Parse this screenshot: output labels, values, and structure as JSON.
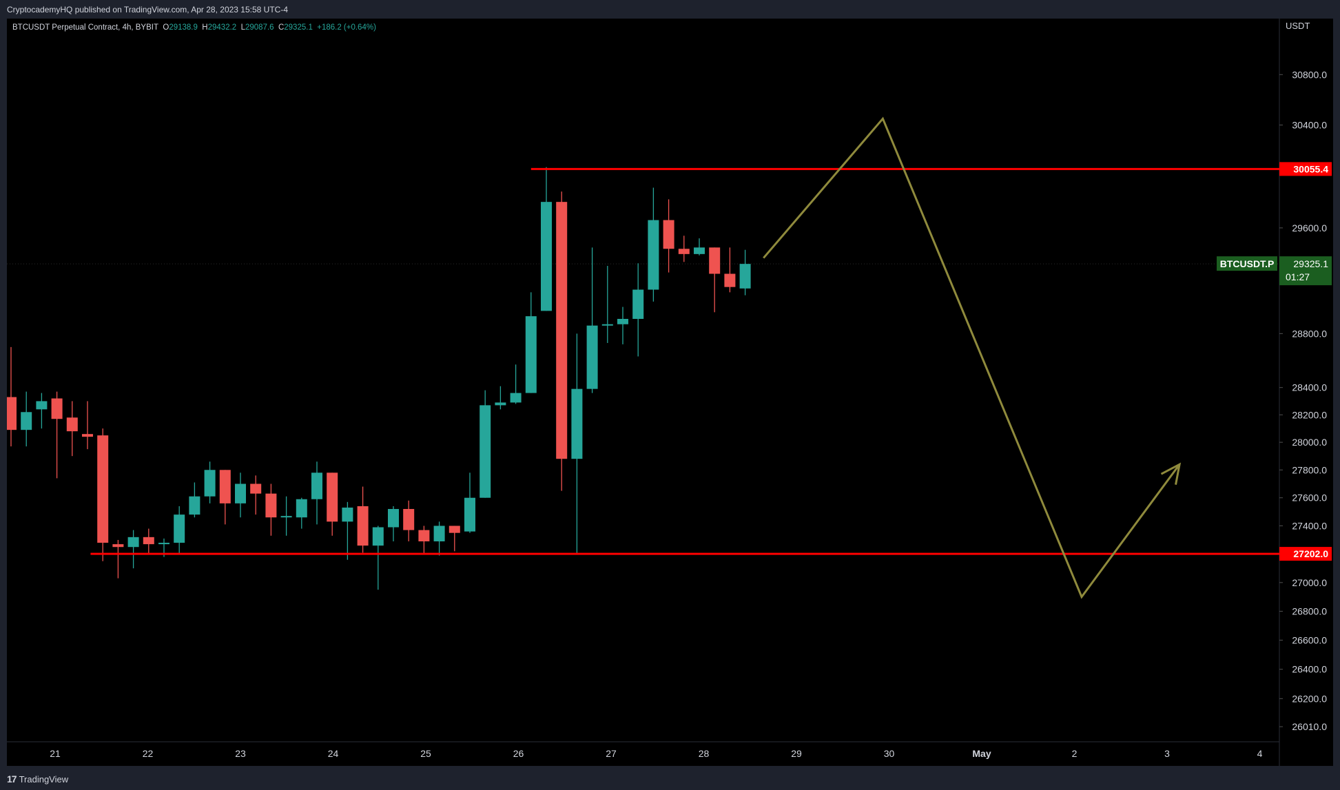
{
  "header": {
    "published_by": "CryptocademyHQ published on TradingView.com, Apr 28, 2023 15:58 UTC-4"
  },
  "legend": {
    "symbol": "BTCUSDT Perpetual Contract, 4h, BYBIT",
    "open_label": "O",
    "open": "29138.9",
    "high_label": "H",
    "high": "29432.2",
    "low_label": "L",
    "low": "29087.6",
    "close_label": "C",
    "close": "29325.1",
    "change": "+186.2 (+0.64%)"
  },
  "footer": {
    "brand": "TradingView",
    "brand_mark": "17"
  },
  "colors": {
    "up": "#26a69a",
    "down": "#ef5350",
    "level_line": "#ff0000",
    "projection": "#8f8a3c",
    "price_badge": "#1b5e20",
    "grid": "#1a1a1a"
  },
  "chart_data": {
    "type": "candlestick",
    "symbol": "BTCUSDT Perpetual Contract",
    "timeframe": "4h",
    "exchange": "BYBIT",
    "currency_label": "USDT",
    "grid": false,
    "y_scale": "log",
    "ylim": [
      25950,
      31100
    ],
    "y_ticks": [
      "30800.0",
      "30400.0",
      "29600.0",
      "28800.0",
      "28400.0",
      "28200.0",
      "28000.0",
      "27800.0",
      "27600.0",
      "27400.0",
      "27000.0",
      "26800.0",
      "26600.0",
      "26400.0",
      "26200.0",
      "26010.0"
    ],
    "x_ticks": [
      "21",
      "22",
      "23",
      "24",
      "25",
      "26",
      "27",
      "28",
      "29",
      "30",
      "May",
      "2",
      "3",
      "4"
    ],
    "candles": [
      {
        "x": 0.0,
        "o": 28330,
        "h": 28700,
        "l": 27970,
        "c": 28090
      },
      {
        "x": 1.0,
        "o": 28090,
        "h": 28370,
        "l": 27970,
        "c": 28220
      },
      {
        "x": 2.0,
        "o": 28240,
        "h": 28360,
        "l": 28100,
        "c": 28300
      },
      {
        "x": 3.0,
        "o": 28320,
        "h": 28370,
        "l": 27740,
        "c": 28170
      },
      {
        "x": 4.0,
        "o": 28180,
        "h": 28300,
        "l": 27900,
        "c": 28080
      },
      {
        "x": 5.0,
        "o": 28060,
        "h": 28300,
        "l": 27950,
        "c": 28040
      },
      {
        "x": 6.0,
        "o": 28050,
        "h": 28100,
        "l": 27150,
        "c": 27280
      },
      {
        "x": 7.0,
        "o": 27270,
        "h": 27300,
        "l": 27030,
        "c": 27250
      },
      {
        "x": 8.0,
        "o": 27250,
        "h": 27370,
        "l": 27100,
        "c": 27320
      },
      {
        "x": 9.0,
        "o": 27320,
        "h": 27380,
        "l": 27200,
        "c": 27270
      },
      {
        "x": 10.0,
        "o": 27270,
        "h": 27310,
        "l": 27180,
        "c": 27280
      },
      {
        "x": 11.0,
        "o": 27280,
        "h": 27540,
        "l": 27200,
        "c": 27480
      },
      {
        "x": 12.0,
        "o": 27480,
        "h": 27710,
        "l": 27460,
        "c": 27610
      },
      {
        "x": 13.0,
        "o": 27610,
        "h": 27860,
        "l": 27560,
        "c": 27800
      },
      {
        "x": 14.0,
        "o": 27800,
        "h": 27800,
        "l": 27410,
        "c": 27560
      },
      {
        "x": 15.0,
        "o": 27560,
        "h": 27780,
        "l": 27460,
        "c": 27700
      },
      {
        "x": 16.0,
        "o": 27700,
        "h": 27760,
        "l": 27480,
        "c": 27630
      },
      {
        "x": 17.0,
        "o": 27630,
        "h": 27700,
        "l": 27330,
        "c": 27460
      },
      {
        "x": 18.0,
        "o": 27460,
        "h": 27610,
        "l": 27330,
        "c": 27470
      },
      {
        "x": 19.0,
        "o": 27460,
        "h": 27600,
        "l": 27380,
        "c": 27590
      },
      {
        "x": 20.0,
        "o": 27590,
        "h": 27860,
        "l": 27410,
        "c": 27780
      },
      {
        "x": 21.0,
        "o": 27780,
        "h": 27780,
        "l": 27330,
        "c": 27430
      },
      {
        "x": 22.0,
        "o": 27430,
        "h": 27570,
        "l": 27160,
        "c": 27530
      },
      {
        "x": 23.0,
        "o": 27540,
        "h": 27680,
        "l": 27210,
        "c": 27260
      },
      {
        "x": 24.0,
        "o": 27260,
        "h": 27400,
        "l": 26950,
        "c": 27390
      },
      {
        "x": 25.0,
        "o": 27390,
        "h": 27540,
        "l": 27290,
        "c": 27520
      },
      {
        "x": 26.0,
        "o": 27520,
        "h": 27580,
        "l": 27290,
        "c": 27370
      },
      {
        "x": 27.0,
        "o": 27370,
        "h": 27400,
        "l": 27200,
        "c": 27290
      },
      {
        "x": 28.0,
        "o": 27290,
        "h": 27430,
        "l": 27190,
        "c": 27400
      },
      {
        "x": 29.0,
        "o": 27400,
        "h": 27400,
        "l": 27220,
        "c": 27350
      },
      {
        "x": 30.0,
        "o": 27360,
        "h": 27780,
        "l": 27350,
        "c": 27600
      },
      {
        "x": 31.0,
        "o": 27600,
        "h": 28380,
        "l": 27600,
        "c": 28270
      },
      {
        "x": 32.0,
        "o": 28270,
        "h": 28410,
        "l": 28240,
        "c": 28290
      },
      {
        "x": 33.0,
        "o": 28290,
        "h": 28570,
        "l": 28280,
        "c": 28360
      },
      {
        "x": 34.0,
        "o": 28360,
        "h": 29110,
        "l": 28360,
        "c": 28930
      },
      {
        "x": 35.0,
        "o": 28970,
        "h": 30070,
        "l": 28970,
        "c": 29800
      },
      {
        "x": 36.0,
        "o": 29800,
        "h": 29880,
        "l": 27650,
        "c": 27880
      },
      {
        "x": 37.0,
        "o": 27880,
        "h": 28800,
        "l": 27200,
        "c": 28390
      },
      {
        "x": 38.0,
        "o": 28390,
        "h": 29450,
        "l": 28360,
        "c": 28860
      },
      {
        "x": 39.0,
        "o": 28870,
        "h": 29310,
        "l": 28730,
        "c": 28870
      },
      {
        "x": 40.0,
        "o": 28870,
        "h": 29000,
        "l": 28720,
        "c": 28910
      },
      {
        "x": 41.0,
        "o": 28910,
        "h": 29330,
        "l": 28630,
        "c": 29130
      },
      {
        "x": 42.0,
        "o": 29130,
        "h": 29910,
        "l": 29040,
        "c": 29660
      },
      {
        "x": 43.0,
        "o": 29660,
        "h": 29820,
        "l": 29260,
        "c": 29440
      },
      {
        "x": 44.0,
        "o": 29440,
        "h": 29540,
        "l": 29340,
        "c": 29400
      },
      {
        "x": 45.0,
        "o": 29400,
        "h": 29520,
        "l": 29390,
        "c": 29450
      },
      {
        "x": 46.0,
        "o": 29450,
        "h": 29450,
        "l": 28960,
        "c": 29250
      },
      {
        "x": 47.0,
        "o": 29250,
        "h": 29450,
        "l": 29110,
        "c": 29150
      },
      {
        "x": 48.0,
        "o": 29138.9,
        "h": 29432.2,
        "l": 29087.6,
        "c": 29325.1
      }
    ],
    "levels": [
      {
        "label": "30055.4",
        "value": 30055.4,
        "x_from": 34.0
      },
      {
        "label": "27202.0",
        "value": 27202.0,
        "x_from": 5.2
      }
    ],
    "projection_path": [
      {
        "x": 49.2,
        "y": 29370
      },
      {
        "x": 57.0,
        "y": 30450
      },
      {
        "x": 70.0,
        "y": 26900
      },
      {
        "x": 76.4,
        "y": 27840
      }
    ],
    "current_price": {
      "symbol": "BTCUSDT.P",
      "price": "29325.1",
      "countdown": "01:27"
    }
  }
}
